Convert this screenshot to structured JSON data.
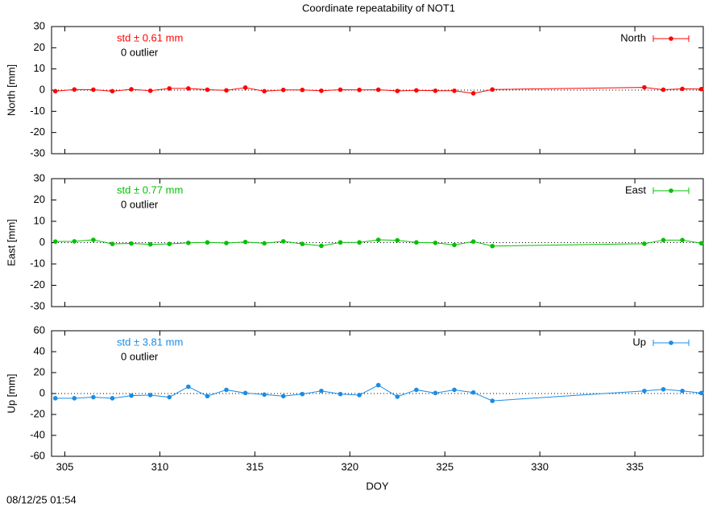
{
  "title": "Coordinate repeatability of NOT1",
  "footer": "08/12/25 01:54",
  "chart_data": [
    {
      "type": "line",
      "ylabel": "North [mm]",
      "x": [
        304.5,
        305.5,
        306.5,
        307.5,
        308.5,
        309.5,
        310.5,
        311.5,
        312.5,
        313.5,
        314.5,
        315.5,
        316.5,
        317.5,
        318.5,
        319.5,
        320.5,
        321.5,
        322.5,
        323.5,
        324.5,
        325.5,
        326.5,
        327.5,
        335.5,
        336.5,
        337.5,
        338.5
      ],
      "xlim": [
        304.3,
        338.6
      ],
      "xticks": [
        305,
        310,
        315,
        320,
        325,
        330,
        335
      ],
      "ylim": [
        -30,
        30
      ],
      "yticks": [
        -30,
        -20,
        -10,
        0,
        10,
        20,
        30
      ],
      "annotations": [
        "std ± 0.61 mm",
        "0 outlier"
      ],
      "series": [
        {
          "name": "North",
          "color": "#ff0000",
          "values": [
            -0.5,
            0.3,
            0.2,
            -0.5,
            0.4,
            -0.3,
            0.8,
            0.8,
            0.2,
            -0.1,
            1.2,
            -0.5,
            0.1,
            0.1,
            -0.3,
            0.2,
            0.1,
            0.2,
            -0.4,
            -0.1,
            -0.3,
            -0.3,
            -1.5,
            0.3,
            1.3,
            0.2,
            0.6,
            0.5
          ]
        }
      ]
    },
    {
      "type": "line",
      "ylabel": "East [mm]",
      "x": [
        304.5,
        305.5,
        306.5,
        307.5,
        308.5,
        309.5,
        310.5,
        311.5,
        312.5,
        313.5,
        314.5,
        315.5,
        316.5,
        317.5,
        318.5,
        319.5,
        320.5,
        321.5,
        322.5,
        323.5,
        324.5,
        325.5,
        326.5,
        327.5,
        335.5,
        336.5,
        337.5,
        338.5
      ],
      "xlim": [
        304.3,
        338.6
      ],
      "xticks": [
        305,
        310,
        315,
        320,
        325,
        330,
        335
      ],
      "ylim": [
        -30,
        30
      ],
      "yticks": [
        -30,
        -20,
        -10,
        0,
        10,
        20,
        30
      ],
      "annotations": [
        "std ± 0.77 mm",
        "0 outlier"
      ],
      "series": [
        {
          "name": "East",
          "color": "#00c000",
          "values": [
            0.5,
            0.6,
            1.3,
            -0.6,
            -0.4,
            -0.8,
            -0.6,
            -0.1,
            0.1,
            -0.2,
            0.3,
            -0.3,
            0.6,
            -0.6,
            -1.5,
            0.1,
            0.1,
            1.3,
            1.1,
            0.1,
            -0.1,
            -1.1,
            0.5,
            -1.6,
            -0.5,
            1.2,
            1.2,
            -0.3
          ]
        }
      ]
    },
    {
      "type": "line",
      "ylabel": "Up [mm]",
      "xlabel": "DOY",
      "x": [
        304.5,
        305.5,
        306.5,
        307.5,
        308.5,
        309.5,
        310.5,
        311.5,
        312.5,
        313.5,
        314.5,
        315.5,
        316.5,
        317.5,
        318.5,
        319.5,
        320.5,
        321.5,
        322.5,
        323.5,
        324.5,
        325.5,
        326.5,
        327.5,
        335.5,
        336.5,
        337.5,
        338.5
      ],
      "xlim": [
        304.3,
        338.6
      ],
      "xticks": [
        305,
        310,
        315,
        320,
        325,
        330,
        335
      ],
      "ylim": [
        -60,
        60
      ],
      "yticks": [
        -60,
        -40,
        -20,
        0,
        20,
        40,
        60
      ],
      "annotations": [
        "std ± 3.81 mm",
        "0 outlier"
      ],
      "series": [
        {
          "name": "Up",
          "color": "#1a8ce6",
          "values": [
            -4.5,
            -4.5,
            -3.5,
            -4.5,
            -2,
            -1.5,
            -3.5,
            6.5,
            -2.5,
            3.5,
            0.5,
            -1,
            -2.5,
            -0.5,
            2.5,
            -0.5,
            -1.5,
            8,
            -3,
            3.5,
            0.5,
            3.5,
            1,
            -7,
            2.5,
            4,
            2.5,
            0.5
          ]
        }
      ]
    }
  ]
}
